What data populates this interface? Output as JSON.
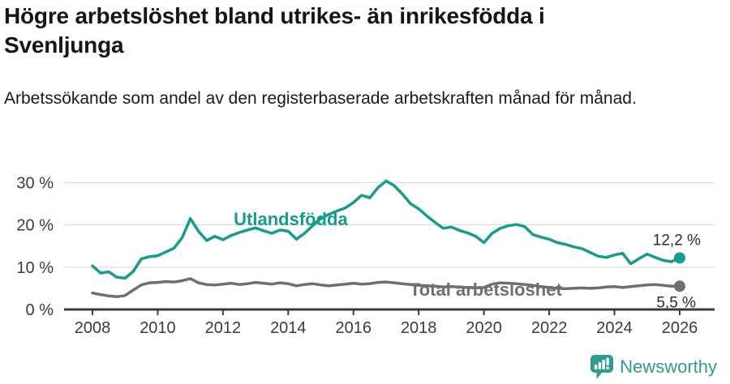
{
  "header": {
    "title": "Högre arbetslöshet bland utrikes- än inrikesfödda i Svenljunga",
    "subtitle": "Arbetssökande som andel av den registerbaserade arbetskraften månad för månad."
  },
  "chart_data": {
    "type": "line",
    "title": "Högre arbetslöshet bland utrikes- än inrikesfödda i Svenljunga",
    "subtitle": "Arbetssökande som andel av den registerbaserade arbetskraften månad för månad.",
    "x_start": 2008.0,
    "x_step": 0.25,
    "x_unit": "year",
    "xlim": [
      2007.15,
      2027.05
    ],
    "ylim": [
      0,
      32
    ],
    "grid": "horizontal",
    "legend_position": "inline-labels",
    "x_ticks": [
      2008,
      2010,
      2012,
      2014,
      2016,
      2018,
      2020,
      2022,
      2024,
      2026
    ],
    "y_ticks": [
      0,
      10,
      20,
      30
    ],
    "y_tick_labels": [
      "0 %",
      "10 %",
      "20 %",
      "30 %"
    ],
    "series": [
      {
        "name": "Utlandsfödda",
        "color": "#169b8c",
        "end_label": "12,2 %",
        "end_value": 12.2,
        "label_pos": [
          2012.33,
          19.9
        ],
        "values": [
          10.3,
          8.6,
          8.9,
          7.6,
          7.4,
          9.0,
          12.0,
          12.5,
          12.7,
          13.6,
          14.5,
          17.0,
          21.5,
          18.5,
          16.3,
          17.3,
          16.5,
          17.5,
          18.2,
          18.8,
          19.3,
          18.6,
          18.0,
          18.8,
          18.5,
          16.6,
          18.0,
          19.8,
          21.5,
          22.5,
          23.3,
          24.0,
          25.3,
          27.0,
          26.4,
          28.8,
          30.4,
          29.3,
          27.3,
          25.0,
          23.8,
          22.1,
          20.6,
          19.2,
          19.5,
          18.7,
          18.1,
          17.3,
          15.8,
          18.0,
          19.2,
          19.8,
          20.1,
          19.6,
          17.7,
          17.1,
          16.6,
          15.8,
          15.4,
          14.8,
          14.4,
          13.5,
          12.6,
          12.3,
          12.9,
          13.3,
          10.8,
          12.0,
          13.1,
          12.3,
          11.6,
          11.3,
          12.2
        ]
      },
      {
        "name": "Total arbetslöshet",
        "color": "#6f6f6f",
        "end_label": "5,5 %",
        "end_value": 5.5,
        "label_pos": [
          2017.72,
          3.3
        ],
        "values": [
          3.9,
          3.5,
          3.2,
          3.0,
          3.3,
          4.6,
          5.8,
          6.3,
          6.4,
          6.6,
          6.5,
          6.8,
          7.3,
          6.3,
          5.9,
          5.8,
          6.0,
          6.2,
          5.9,
          6.1,
          6.4,
          6.2,
          6.0,
          6.3,
          6.1,
          5.6,
          5.9,
          6.1,
          5.8,
          5.6,
          5.8,
          6.0,
          6.2,
          6.0,
          6.1,
          6.4,
          6.5,
          6.3,
          6.1,
          5.9,
          5.7,
          5.6,
          5.5,
          5.3,
          5.4,
          5.3,
          5.2,
          5.1,
          5.2,
          6.0,
          6.3,
          6.2,
          6.1,
          5.9,
          5.7,
          5.4,
          5.2,
          5.0,
          4.9,
          5.0,
          5.1,
          5.0,
          5.1,
          5.3,
          5.4,
          5.2,
          5.4,
          5.6,
          5.8,
          5.9,
          5.7,
          5.5,
          5.5
        ]
      }
    ]
  },
  "footer": {
    "brand": "Newsworthy"
  },
  "colors": {
    "accent_teal": "#169b8c",
    "line_gray": "#6f6f6f",
    "axis": "#3b3b3b",
    "gridline": "#dcdcdc",
    "text": "#1a1a1a",
    "brand_teal": "#2f9c8d"
  }
}
